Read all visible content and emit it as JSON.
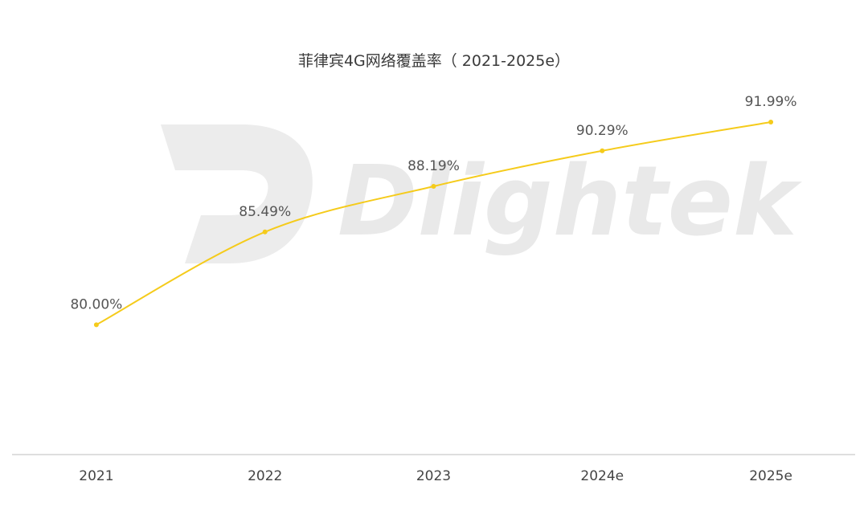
{
  "watermark": "Dlightek",
  "chart_data": {
    "type": "line",
    "title": "菲律宾4G网络覆盖率（ 2021-2025e）",
    "categories": [
      "2021",
      "2022",
      "2023",
      "2024e",
      "2025e"
    ],
    "values": [
      80.0,
      85.49,
      88.19,
      90.29,
      91.99
    ],
    "data_labels": [
      "80.00%",
      "85.49%",
      "88.19%",
      "90.29%",
      "91.99%"
    ],
    "xlabel": "",
    "ylabel": "",
    "ylim": [
      72.32,
      94.46
    ],
    "grid": false,
    "legend": "none",
    "color": "#F5CB1B"
  }
}
